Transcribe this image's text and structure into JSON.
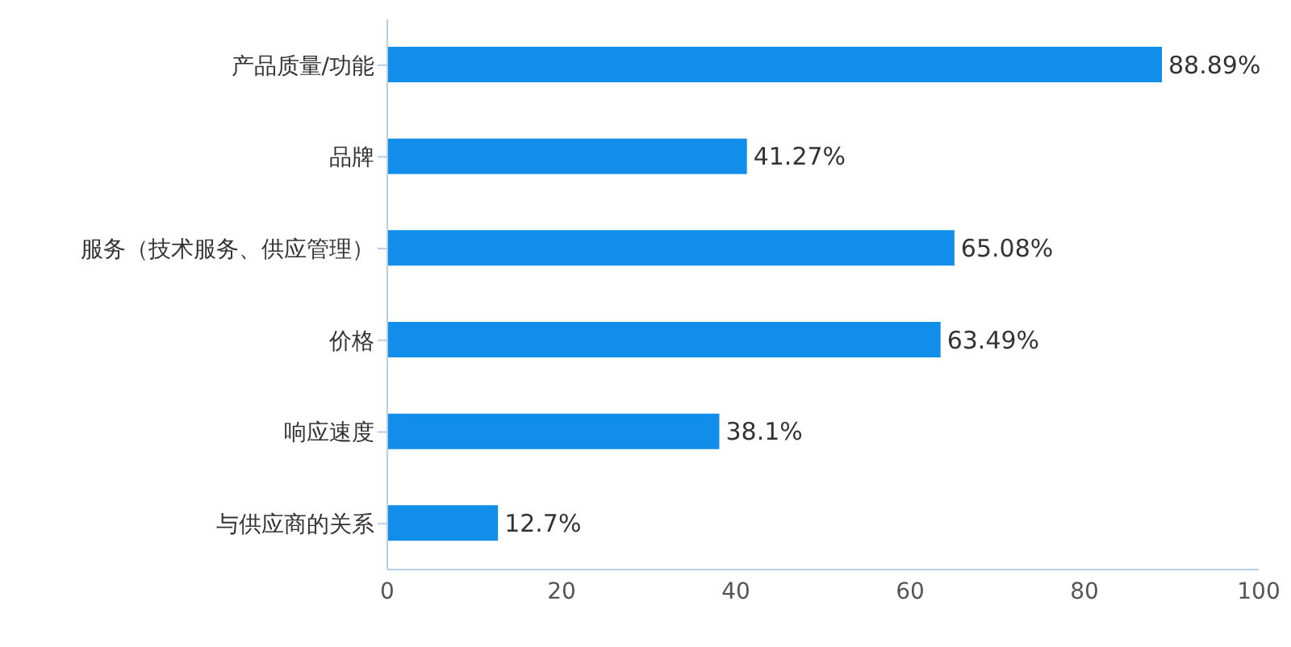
{
  "chart_data": {
    "type": "bar",
    "orientation": "horizontal",
    "categories": [
      "产品质量/功能",
      "品牌",
      "服务（技术服务、供应管理）",
      "价格",
      "响应速度",
      "与供应商的关系"
    ],
    "values": [
      88.89,
      41.27,
      65.08,
      63.49,
      38.1,
      12.7
    ],
    "color": "#108ee9",
    "value_labels": [
      "88.89%",
      "41.27%",
      "65.08%",
      "63.49%",
      "38.1%",
      "12.7%"
    ],
    "xlim": [
      0,
      100
    ],
    "xticks": [
      0,
      20,
      40,
      60,
      80,
      100
    ],
    "grid": false
  }
}
